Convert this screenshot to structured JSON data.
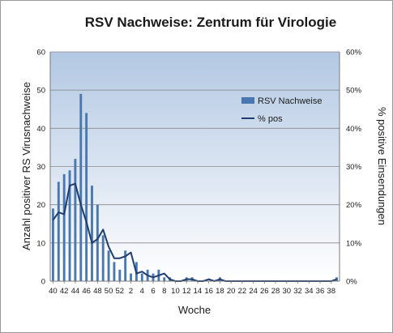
{
  "chart_data": {
    "type": "bar",
    "title": "RSV Nachweise: Zentrum für Virologie",
    "xlabel": "Woche",
    "ylabel_left": "Anzahl positiver RS Virusnachweise",
    "ylabel_right": "% positive Einsendungen",
    "ylim_left": [
      0,
      60
    ],
    "ylim_right": [
      0,
      60
    ],
    "yticks_left": [
      "0",
      "10",
      "20",
      "30",
      "40",
      "50",
      "60"
    ],
    "yticks_right": [
      "0%",
      "10%",
      "20%",
      "30%",
      "40%",
      "50%",
      "60%"
    ],
    "categories": [
      "40",
      "41",
      "42",
      "43",
      "44",
      "45",
      "46",
      "47",
      "48",
      "49",
      "50",
      "51",
      "52",
      "1",
      "2",
      "3",
      "4",
      "5",
      "6",
      "7",
      "8",
      "9",
      "10",
      "11",
      "12",
      "13",
      "14",
      "15",
      "16",
      "17",
      "18",
      "19",
      "20",
      "21",
      "22",
      "23",
      "24",
      "25",
      "26",
      "27",
      "28",
      "29",
      "30",
      "31",
      "32",
      "33",
      "34",
      "35",
      "36",
      "37",
      "38",
      "39"
    ],
    "x_tick_labels": [
      "40",
      "42",
      "44",
      "46",
      "48",
      "50",
      "52",
      "2",
      "4",
      "6",
      "8",
      "10",
      "12",
      "14",
      "16",
      "18",
      "20",
      "22",
      "24",
      "26",
      "28",
      "30",
      "32",
      "34",
      "36",
      "38"
    ],
    "grid": true,
    "legend_position": "upper-right-inside",
    "colors": {
      "bar": "#4a78ae",
      "line": "#1f3d6e",
      "plot_bg_top": "#b6cae4",
      "plot_bg_bottom": "#ffffff"
    },
    "series": [
      {
        "name": "RSV Nachweise",
        "type": "bar",
        "axis": "left",
        "values": [
          19,
          26,
          28,
          29,
          32,
          49,
          44,
          25,
          20,
          12,
          8,
          5,
          3,
          8,
          2,
          5,
          2,
          3,
          2,
          3,
          1,
          1,
          0,
          0,
          1,
          1,
          0,
          0,
          0,
          0,
          1,
          0,
          0,
          0,
          0,
          0,
          0,
          0,
          0,
          0,
          0,
          0,
          0,
          0,
          0,
          0,
          0,
          0,
          0,
          0,
          0,
          1
        ]
      },
      {
        "name": "% pos",
        "type": "line",
        "axis": "right",
        "values": [
          16,
          18,
          17.5,
          25,
          25.5,
          20,
          15.5,
          10,
          11,
          13.5,
          9,
          6,
          6,
          6.5,
          7.5,
          2,
          2.5,
          1.5,
          1,
          1.5,
          2,
          0.5,
          0,
          0,
          0.5,
          0.5,
          0,
          0,
          0.5,
          0,
          0.5,
          0,
          0,
          0,
          0,
          0,
          0,
          0,
          0,
          0,
          0,
          0,
          0,
          0,
          0,
          0,
          0,
          0,
          0,
          0,
          0,
          0.5
        ]
      }
    ]
  }
}
